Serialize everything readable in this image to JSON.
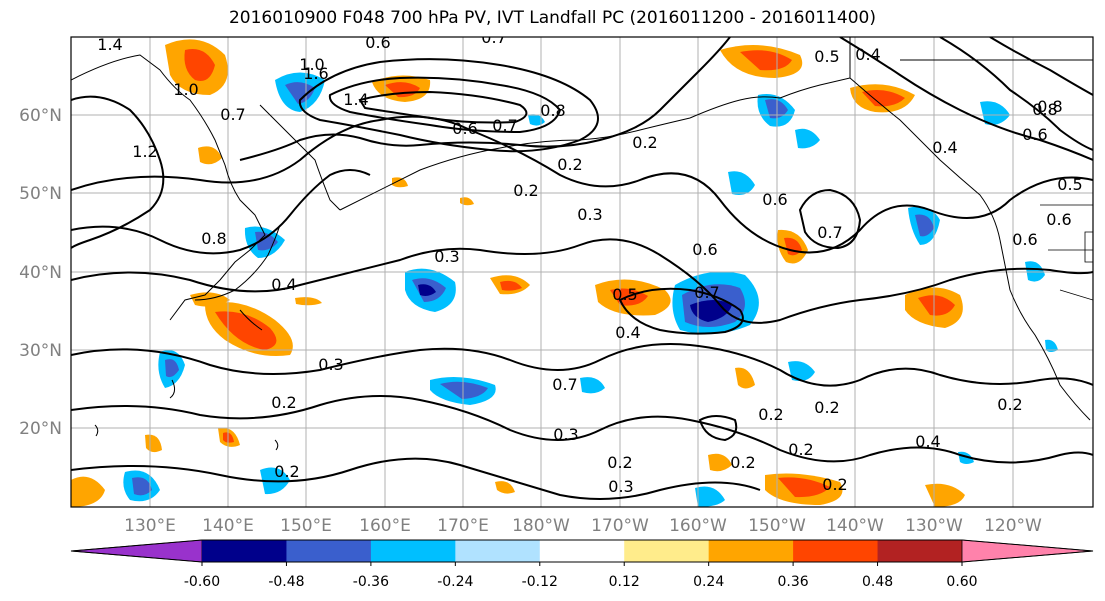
{
  "title": "2016010900 F048 700 hPa PV, IVT Landfall PC (2016011200 - 2016011400)",
  "lat_labels": [
    "60°N",
    "50°N",
    "40°N",
    "30°N",
    "20°N"
  ],
  "lon_labels": [
    "130°E",
    "140°E",
    "150°E",
    "160°E",
    "170°E",
    "180°W",
    "170°W",
    "160°W",
    "150°W",
    "140°W",
    "130°W",
    "120°W"
  ],
  "colorbar": {
    "colors": [
      "#9932cc",
      "#00008b",
      "#3a5fcd",
      "#00bfff",
      "#b0e2ff",
      "#ffffff",
      "#ffec8b",
      "#ffa500",
      "#ff4500",
      "#b22222",
      "#ff82ab"
    ],
    "tick_labels": [
      "-0.60",
      "-0.48",
      "-0.36",
      "-0.24",
      "-0.12",
      "0.12",
      "0.24",
      "0.36",
      "0.48",
      "0.60"
    ]
  },
  "contour_labels": [
    "1.4",
    "0.6",
    "0.7",
    "0.4",
    "0.5",
    "1.0",
    "1.6",
    "1.4",
    "0.8",
    "1.2",
    "0.7",
    "1.0",
    "0.6",
    "0.7",
    "0.8",
    "0.2",
    "0.2",
    "0.3",
    "0.6",
    "0.6",
    "0.7",
    "0.4",
    "0.8",
    "0.2",
    "0.3",
    "0.5",
    "0.7",
    "0.4",
    "0.3",
    "0.2",
    "0.7",
    "0.3",
    "0.2",
    "0.2",
    "0.2",
    "0.2",
    "0.2",
    "0.3",
    "0.2",
    "0.4",
    "0.2",
    "0.2",
    "0.6",
    "0.6",
    "0.5",
    "0.6",
    "0.8",
    "0.4"
  ],
  "colors": {
    "contour": "#000000",
    "grid": "#b0b0b0",
    "coast": "#000000",
    "tick_text": "#808080"
  }
}
